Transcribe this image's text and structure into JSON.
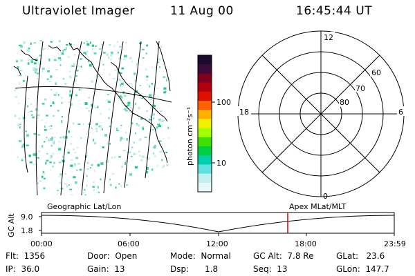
{
  "header": {
    "title": "Ultraviolet Imager",
    "date": "11 Aug 00",
    "time": "16:45:44 UT"
  },
  "colorbar": {
    "unit_label": "photon cm⁻²s⁻¹",
    "ticks": [
      "100",
      "10"
    ],
    "colors": [
      "#1a0a2e",
      "#3a0a3a",
      "#800020",
      "#b00010",
      "#e01000",
      "#ff6000",
      "#ffb000",
      "#f0f000",
      "#a0ff00",
      "#40e000",
      "#00d040",
      "#00d0b0",
      "#60e0e0",
      "#c0f0f0",
      "#e8f8f8"
    ]
  },
  "polar": {
    "labels": {
      "top": "12",
      "left": "18",
      "right": "6",
      "bottom": "0"
    },
    "lat_labels": [
      "60",
      "70",
      "80"
    ]
  },
  "timeline": {
    "left_title": "Geographic Lat/Lon",
    "right_title": "Apex MLat/MLT",
    "axis_label": "GC Alt",
    "ymax": "9.0",
    "ymin": "1.8",
    "xticks": [
      "00:00",
      "06:00",
      "12:00",
      "18:00",
      "23:59"
    ],
    "marker_color": "#d00000"
  },
  "info": {
    "flt": "Flt:  1356",
    "ip": "IP:  36.0",
    "door": "Door:  Open",
    "gain": "Gain:  13",
    "mode": "Mode:  Normal",
    "dsp": "Dsp:      1.8",
    "gcalt": "GC Alt:  7.8 Re",
    "seq": "Seq:  13",
    "glat": "GLat:   23.6",
    "glon": "GLon:  147.7"
  }
}
